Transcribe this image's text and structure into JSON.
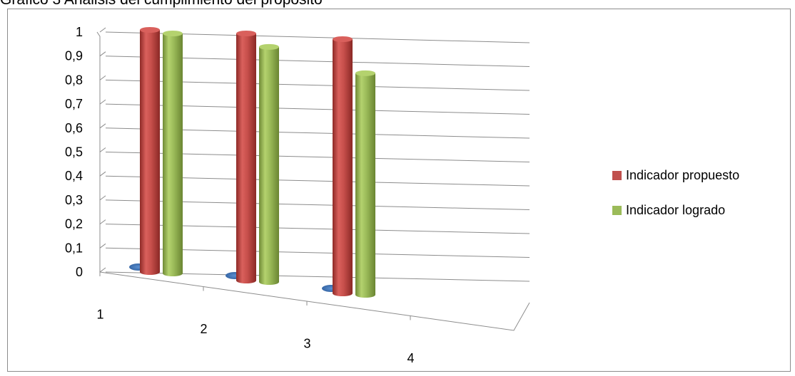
{
  "title": "Gráfico 3 Análisis del cumplimiento del propósito",
  "colors": {
    "series_primary": "#c0504d",
    "series_secondary": "#9bbb59",
    "series_tertiary": "#4f81bd",
    "gridline": "#8c8c8c"
  },
  "chart_data": {
    "type": "bar",
    "style": "3d-cylinder",
    "categories": [
      "1",
      "2",
      "3",
      "4"
    ],
    "series": [
      {
        "name": "",
        "values": [
          0,
          0,
          0,
          null
        ],
        "color": "#4f81bd"
      },
      {
        "name": "Indicador propuesto",
        "values": [
          1,
          1,
          1,
          null
        ],
        "color": "#c0504d"
      },
      {
        "name": "Indicador logrado",
        "values": [
          1,
          0.96,
          0.88,
          null
        ],
        "color": "#9bbb59"
      }
    ],
    "ylim": [
      0,
      1
    ],
    "yticks": [
      "0",
      "0,1",
      "0,2",
      "0,3",
      "0,4",
      "0,5",
      "0,6",
      "0,7",
      "0,8",
      "0,9",
      "1"
    ],
    "grid": true,
    "legend_position": "right"
  }
}
